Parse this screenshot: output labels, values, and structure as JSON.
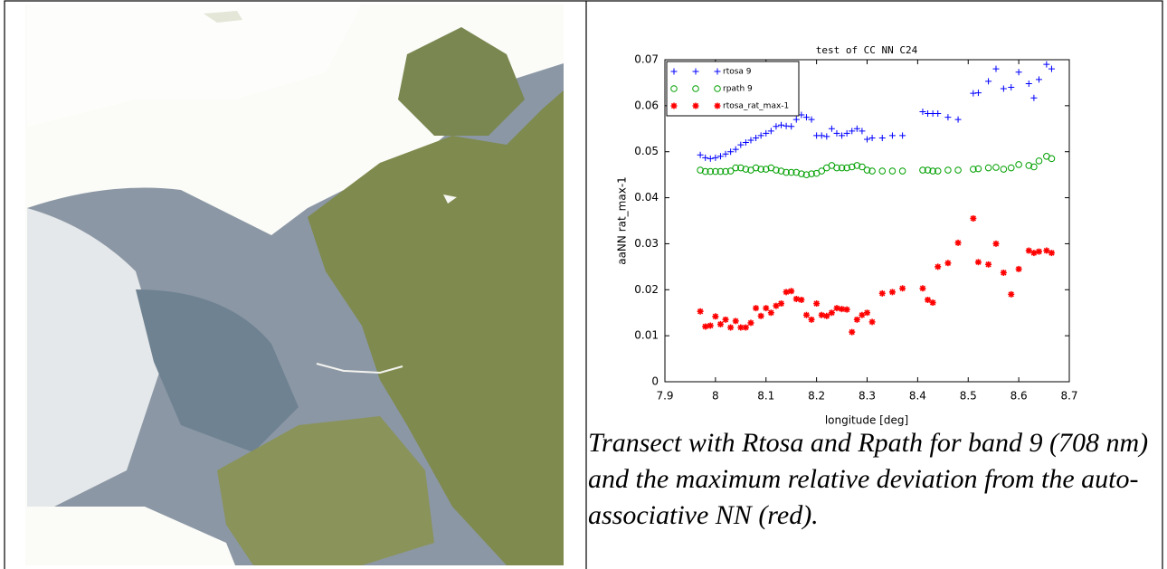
{
  "chart_data": {
    "type": "scatter",
    "title": "test of CC NN C24",
    "x_label": "longitude [deg]",
    "y_label": "aaNN rat_max-1",
    "xlim": [
      7.9,
      8.7
    ],
    "xticks": [
      7.9,
      8,
      8.1,
      8.2,
      8.3,
      8.4,
      8.5,
      8.6,
      8.7
    ],
    "ylim": [
      0,
      0.07
    ],
    "yticks": [
      0,
      0.01,
      0.02,
      0.03,
      0.04,
      0.05,
      0.06,
      0.07
    ],
    "legend": "upper left",
    "x": [
      7.97,
      7.98,
      7.99,
      8.0,
      8.01,
      8.02,
      8.03,
      8.04,
      8.05,
      8.06,
      8.07,
      8.08,
      8.09,
      8.1,
      8.11,
      8.12,
      8.13,
      8.14,
      8.15,
      8.16,
      8.17,
      8.18,
      8.19,
      8.2,
      8.21,
      8.22,
      8.23,
      8.24,
      8.25,
      8.26,
      8.27,
      8.28,
      8.29,
      8.3,
      8.31,
      8.33,
      8.35,
      8.37,
      8.41,
      8.42,
      8.43,
      8.44,
      8.46,
      8.48,
      8.51,
      8.52,
      8.54,
      8.555,
      8.57,
      8.585,
      8.6,
      8.62,
      8.63,
      8.64,
      8.655,
      8.665
    ],
    "series": [
      {
        "name": "rtosa 9",
        "color": "#0000ff",
        "marker": "plus",
        "values": [
          0.0493,
          0.0487,
          0.0485,
          0.0487,
          0.049,
          0.0495,
          0.05,
          0.0505,
          0.0515,
          0.052,
          0.0525,
          0.053,
          0.0535,
          0.054,
          0.0545,
          0.0555,
          0.0558,
          0.0556,
          0.0555,
          0.057,
          0.058,
          0.0575,
          0.057,
          0.0535,
          0.0535,
          0.0533,
          0.055,
          0.054,
          0.0535,
          0.054,
          0.0545,
          0.055,
          0.0545,
          0.0527,
          0.053,
          0.053,
          0.0535,
          0.0535,
          0.0587,
          0.0583,
          0.0583,
          0.0583,
          0.0575,
          0.057,
          0.0627,
          0.0628,
          0.0653,
          0.068,
          0.0637,
          0.064,
          0.0673,
          0.0648,
          0.0617,
          0.0657,
          0.069,
          0.068
        ]
      },
      {
        "name": "rpath 9",
        "color": "#00a000",
        "marker": "circle",
        "values": [
          0.046,
          0.0457,
          0.0457,
          0.0457,
          0.0457,
          0.0457,
          0.0458,
          0.0465,
          0.0465,
          0.0462,
          0.046,
          0.0465,
          0.0462,
          0.0462,
          0.0465,
          0.046,
          0.0458,
          0.0455,
          0.0455,
          0.0455,
          0.0452,
          0.045,
          0.0452,
          0.0453,
          0.0458,
          0.0465,
          0.047,
          0.0465,
          0.0465,
          0.0465,
          0.0467,
          0.047,
          0.0467,
          0.046,
          0.0458,
          0.0458,
          0.0458,
          0.0458,
          0.046,
          0.046,
          0.0458,
          0.0458,
          0.046,
          0.046,
          0.0462,
          0.0463,
          0.0465,
          0.0466,
          0.0462,
          0.0465,
          0.0472,
          0.047,
          0.0467,
          0.048,
          0.049,
          0.0485
        ]
      },
      {
        "name": "rtosa_rat_max-1",
        "color": "#ff0000",
        "marker": "star",
        "values": [
          0.0153,
          0.012,
          0.0122,
          0.0142,
          0.0125,
          0.0135,
          0.0118,
          0.0132,
          0.0118,
          0.0118,
          0.0128,
          0.016,
          0.0143,
          0.016,
          0.015,
          0.0165,
          0.017,
          0.0195,
          0.0197,
          0.018,
          0.0178,
          0.0145,
          0.0135,
          0.017,
          0.0145,
          0.0143,
          0.015,
          0.016,
          0.0158,
          0.0157,
          0.0108,
          0.0135,
          0.0145,
          0.015,
          0.013,
          0.0192,
          0.0195,
          0.0203,
          0.0203,
          0.0178,
          0.0172,
          0.025,
          0.0258,
          0.0302,
          0.0355,
          0.026,
          0.0255,
          0.03,
          0.0237,
          0.019,
          0.0245,
          0.0285,
          0.028,
          0.0283,
          0.0285,
          0.028
        ]
      }
    ]
  },
  "caption": "Transect with Rtosa and Rpath for band 9 (708 nm) and the maximum relative deviation from the auto-associative NN (red)."
}
